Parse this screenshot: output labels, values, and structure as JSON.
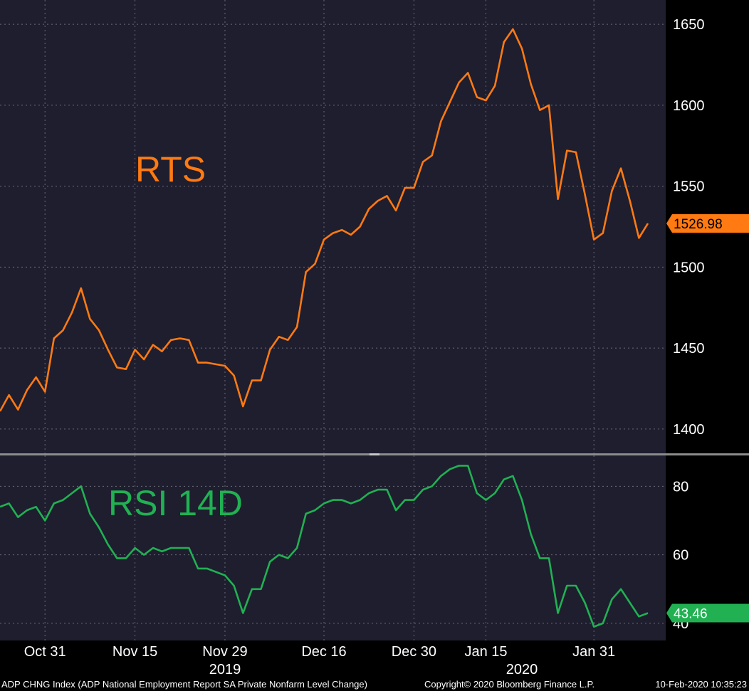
{
  "chart_data": [
    {
      "type": "line",
      "title": "RTS",
      "ylim": [
        1385,
        1665
      ],
      "yticks": [
        1400,
        1450,
        1500,
        1550,
        1600,
        1650
      ],
      "last_value_label": "1526.98",
      "color": "#ff7a12",
      "grid": true,
      "x": [
        "2019-10-24",
        "2019-10-25",
        "2019-10-28",
        "2019-10-29",
        "2019-10-30",
        "2019-10-31",
        "2019-11-01",
        "2019-11-05",
        "2019-11-06",
        "2019-11-07",
        "2019-11-08",
        "2019-11-11",
        "2019-11-12",
        "2019-11-13",
        "2019-11-14",
        "2019-11-15",
        "2019-11-18",
        "2019-11-19",
        "2019-11-20",
        "2019-11-21",
        "2019-11-22",
        "2019-11-25",
        "2019-11-26",
        "2019-11-27",
        "2019-11-28",
        "2019-11-29",
        "2019-12-02",
        "2019-12-03",
        "2019-12-04",
        "2019-12-05",
        "2019-12-06",
        "2019-12-09",
        "2019-12-10",
        "2019-12-11",
        "2019-12-12",
        "2019-12-13",
        "2019-12-16",
        "2019-12-17",
        "2019-12-18",
        "2019-12-19",
        "2019-12-20",
        "2019-12-23",
        "2019-12-24",
        "2019-12-25",
        "2019-12-26",
        "2019-12-27",
        "2019-12-30",
        "2020-01-03",
        "2020-01-06",
        "2020-01-08",
        "2020-01-09",
        "2020-01-10",
        "2020-01-13",
        "2020-01-14",
        "2020-01-15",
        "2020-01-16",
        "2020-01-17",
        "2020-01-20",
        "2020-01-21",
        "2020-01-22",
        "2020-01-23",
        "2020-01-24",
        "2020-01-27",
        "2020-01-28",
        "2020-01-29",
        "2020-01-30",
        "2020-01-31",
        "2020-02-03",
        "2020-02-04",
        "2020-02-05",
        "2020-02-06",
        "2020-02-07",
        "2020-02-10"
      ],
      "values": [
        1411,
        1421,
        1412,
        1424,
        1432,
        1423,
        1456,
        1461,
        1472,
        1487,
        1468,
        1461,
        1449,
        1438,
        1437,
        1449,
        1443,
        1452,
        1448,
        1455,
        1456,
        1455,
        1441,
        1441,
        1440,
        1439,
        1433,
        1414,
        1430,
        1430,
        1449,
        1457,
        1455,
        1463,
        1497,
        1502,
        1517,
        1521,
        1523,
        1520,
        1525,
        1536,
        1541,
        1544,
        1535,
        1549,
        1549,
        1565,
        1569,
        1590,
        1602,
        1614,
        1620,
        1605,
        1603,
        1612,
        1639,
        1647,
        1635,
        1613,
        1597,
        1600,
        1542,
        1572,
        1571,
        1545,
        1517,
        1521,
        1547,
        1561,
        1541,
        1518,
        1527
      ]
    },
    {
      "type": "line",
      "title": "RSI 14D",
      "ylim": [
        35,
        89
      ],
      "yticks": [
        40,
        60,
        80
      ],
      "last_value_label": "43.46",
      "color": "#21b152",
      "grid": true,
      "values": [
        74,
        75,
        71,
        73,
        74,
        70,
        75,
        76,
        78,
        80,
        72,
        68,
        63,
        59,
        59,
        62,
        60,
        62,
        61,
        62,
        62,
        62,
        56,
        56,
        55,
        54,
        51,
        43,
        50,
        50,
        58,
        60,
        59,
        62,
        72,
        73,
        75,
        76,
        76,
        75,
        76,
        78,
        79,
        79,
        73,
        76,
        76,
        79,
        80,
        83,
        85,
        86,
        86,
        78,
        76,
        78,
        82,
        83,
        76,
        66,
        59,
        59,
        43,
        51,
        51,
        46,
        39,
        40,
        47,
        50,
        46,
        42,
        43
      ]
    }
  ],
  "x_axis": {
    "tick_labels": [
      {
        "label": "Oct 31",
        "date": "2019-10-31"
      },
      {
        "label": "Nov 15",
        "date": "2019-11-15"
      },
      {
        "label": "Nov 29",
        "date": "2019-11-29"
      },
      {
        "label": "Dec 16",
        "date": "2019-12-16"
      },
      {
        "label": "Dec 30",
        "date": "2019-12-30"
      },
      {
        "label": "Jan 15",
        "date": "2020-01-15"
      },
      {
        "label": "Jan 31",
        "date": "2020-01-31"
      }
    ],
    "year_labels": [
      {
        "label": "2019",
        "date": "2019-11-29"
      },
      {
        "label": "2020",
        "date": "2020-01-21"
      }
    ]
  },
  "footer": {
    "left": "ADP CHNG Index (ADP National Employment Report SA Private Nonfarm Level Change)",
    "center": "Copyright© 2020 Bloomberg Finance L.P.",
    "right": "10-Feb-2020 10:35:23"
  },
  "colors": {
    "background": "#1e1e2f",
    "grid": "#6b6b78",
    "divider": "#8c8c8c"
  }
}
